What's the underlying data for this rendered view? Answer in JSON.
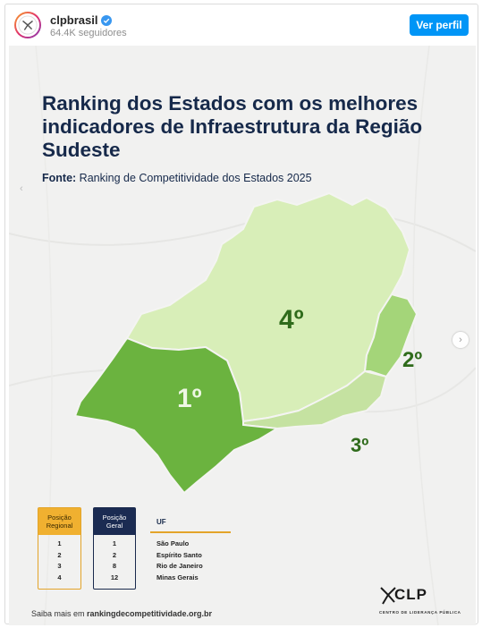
{
  "profile": {
    "username": "clpbrasil",
    "followers": "64.4K seguidores",
    "follow_label": "Ver perfil"
  },
  "post": {
    "title": "Ranking dos Estados com os melhores indicadores de Infraestrutura da Região Sudeste",
    "source_label": "Fonte:",
    "source_text": " Ranking de Competitividade dos Estados 2025",
    "map": {
      "states": [
        {
          "uf": "São Paulo",
          "rank_label": "1º",
          "color": "#6bb33f"
        },
        {
          "uf": "Espírito Santo",
          "rank_label": "2º",
          "color": "#a4d579"
        },
        {
          "uf": "Rio de Janeiro",
          "rank_label": "3º",
          "color": "#c5e2a1"
        },
        {
          "uf": "Minas Gerais",
          "rank_label": "4º",
          "color": "#d8eeb8"
        }
      ]
    },
    "table": {
      "regional_header_1": "Posição",
      "regional_header_2": "Regional",
      "geral_header_1": "Posição",
      "geral_header_2": "Geral",
      "uf_header": "UF",
      "rows": [
        {
          "regional": "1",
          "geral": "1",
          "uf": "São Paulo"
        },
        {
          "regional": "2",
          "geral": "2",
          "uf": "Espírito Santo"
        },
        {
          "regional": "3",
          "geral": "8",
          "uf": "Rio de Janeiro"
        },
        {
          "regional": "4",
          "geral": "12",
          "uf": "Minas Gerais"
        }
      ]
    },
    "footer_prefix": "Saiba mais em ",
    "footer_link": "rankingdecompetitividade.org.br",
    "logo_text": "CLP",
    "logo_sub": "CENTRO DE LIDERANÇA PÚBLICA"
  },
  "colors": {
    "accent": "#0095f6",
    "title": "#16294a",
    "gold": "#f0b030",
    "navy": "#1b2b52"
  }
}
